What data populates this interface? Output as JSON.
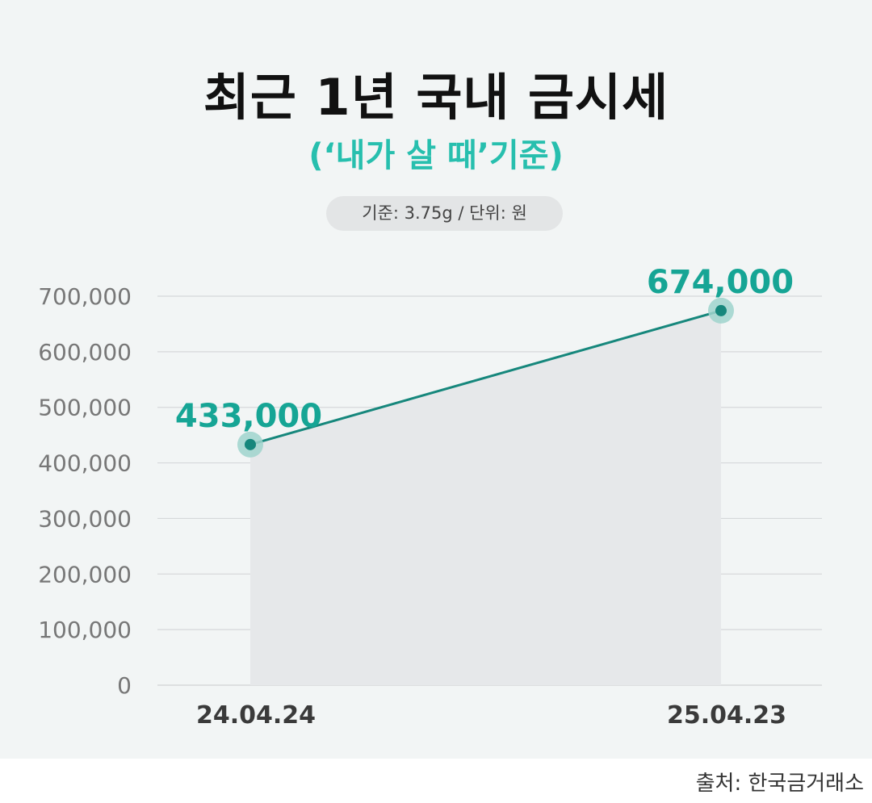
{
  "header": {
    "title": "최근 1년 국내 금시세",
    "subtitle": "(‘내가 살 때’기준)",
    "unit_note": "기준: 3.75g / 단위: 원"
  },
  "chart_data": {
    "type": "line",
    "x": [
      "24.04.24",
      "25.04.23"
    ],
    "series": [
      {
        "values": [
          433000,
          674000
        ],
        "labels": [
          "433,000",
          "674,000"
        ]
      }
    ],
    "y_ticks": [
      0,
      100000,
      200000,
      300000,
      400000,
      500000,
      600000,
      700000
    ],
    "y_tick_labels": [
      "0",
      "100,000",
      "200,000",
      "300,000",
      "400,000",
      "500,000",
      "600,000",
      "700,000"
    ],
    "ylim": [
      0,
      700000
    ],
    "grid": true,
    "area_fill": true,
    "colors": {
      "line": "#16877c",
      "point": "#16877c",
      "halo": "#9fd3cd",
      "label": "#16a595",
      "area": "#e6e8ea",
      "grid": "#d6d8da"
    }
  },
  "footer": {
    "source": "출처: 한국금거래소"
  }
}
